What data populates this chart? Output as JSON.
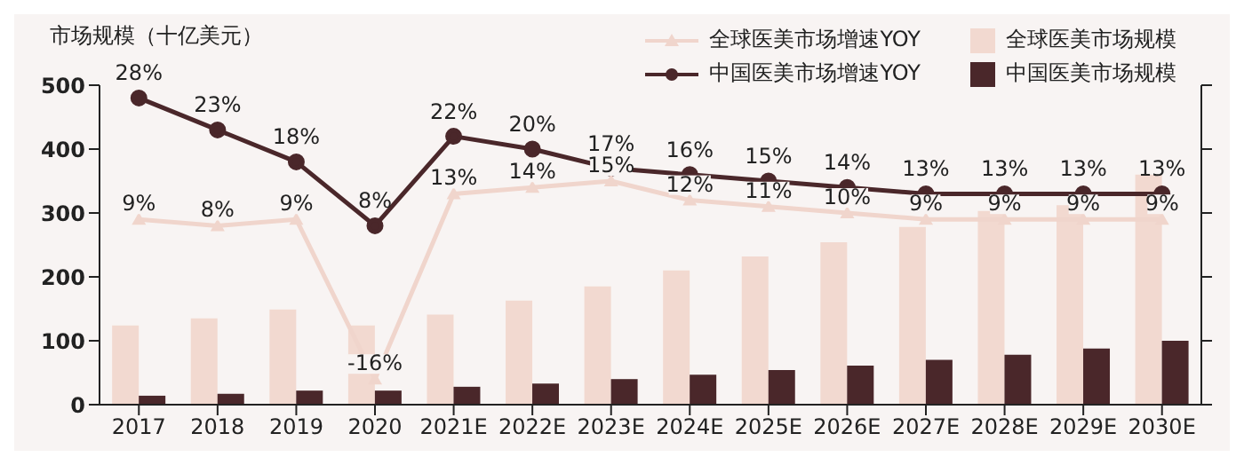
{
  "chart_data": {
    "type": "bar",
    "ylabel": "市场规模（十亿美元）",
    "categories": [
      "2017",
      "2018",
      "2019",
      "2020",
      "2021E",
      "2022E",
      "2023E",
      "2024E",
      "2025E",
      "2026E",
      "2027E",
      "2028E",
      "2029E",
      "2030E"
    ],
    "series": [
      {
        "name": "全球医美市场增速YOY",
        "type": "line",
        "axis": "y2",
        "marker": "triangle",
        "color": "#f0d5cc",
        "values": [
          9,
          8,
          9,
          -16,
          13,
          14,
          15,
          12,
          11,
          10,
          9,
          9,
          9,
          9
        ],
        "value_labels": [
          "9%",
          "8%",
          "9%",
          "-16%",
          "13%",
          "14%",
          "15%",
          "12%",
          "11%",
          "10%",
          "9%",
          "9%",
          "9%",
          "9%"
        ]
      },
      {
        "name": "中国医美市场增速YOY",
        "type": "line",
        "axis": "y2",
        "marker": "circle",
        "color": "#4a272a",
        "values": [
          28,
          23,
          18,
          8,
          22,
          20,
          17,
          16,
          15,
          14,
          13,
          13,
          13,
          13
        ],
        "value_labels": [
          "28%",
          "23%",
          "18%",
          "8%",
          "22%",
          "20%",
          "17%",
          "16%",
          "15%",
          "14%",
          "13%",
          "13%",
          "13%",
          "13%"
        ]
      },
      {
        "name": "全球医美市场规模",
        "color": "#f2d9d0",
        "values": [
          124,
          135,
          149,
          124,
          141,
          163,
          185,
          210,
          232,
          254,
          278,
          303,
          312,
          360
        ]
      },
      {
        "name": "中国医美市场规模",
        "color": "#4a272a",
        "values": [
          14,
          17,
          22,
          22,
          28,
          33,
          40,
          47,
          54,
          61,
          70,
          78,
          88,
          100
        ]
      }
    ],
    "ylim": [
      0,
      500
    ],
    "yticks": [
      0,
      100,
      200,
      300,
      400,
      500
    ],
    "y2lim": [
      -20,
      30
    ],
    "y2ticks": [
      {
        "value": -20,
        "label": null
      },
      {
        "value": -10,
        "label": null
      },
      {
        "value": 0,
        "label": null
      },
      {
        "value": 10,
        "label": null
      },
      {
        "value": 20,
        "label": null
      },
      {
        "value": 30,
        "label": null
      }
    ],
    "legend": "top right",
    "grid": false
  }
}
